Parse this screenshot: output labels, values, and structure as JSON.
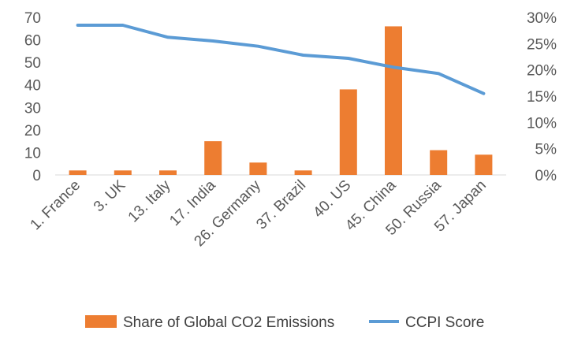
{
  "chart_data": {
    "type": "bar",
    "categories": [
      "1. France",
      "3.  UK",
      "13. Italy",
      "17. India",
      "26. Germany",
      "37. Brazil",
      "40. US",
      "45. China",
      "50. Russia",
      "57. Japan"
    ],
    "series": [
      {
        "name": "Share of Global CO2 Emissions",
        "type": "bar",
        "axis": "left",
        "color": "#ED7D31",
        "values": [
          2,
          2,
          2,
          15,
          5.5,
          2,
          38,
          66,
          11,
          9
        ]
      },
      {
        "name": "CCPI Score",
        "type": "line",
        "axis": "right",
        "color": "#5B9BD5",
        "values": [
          28.5,
          28.5,
          26.2,
          25.5,
          24.5,
          22.8,
          22.2,
          20.5,
          19.3,
          15.5
        ]
      }
    ],
    "left_axis": {
      "ylim": [
        0,
        70
      ],
      "ticks": [
        "0",
        "10",
        "20",
        "30",
        "40",
        "50",
        "60",
        "70"
      ]
    },
    "right_axis": {
      "ylim": [
        0,
        30
      ],
      "unit": "%",
      "ticks": [
        "0%",
        "5%",
        "10%",
        "15%",
        "20%",
        "25%",
        "30%"
      ]
    },
    "grid": false,
    "legend_position": "bottom"
  }
}
